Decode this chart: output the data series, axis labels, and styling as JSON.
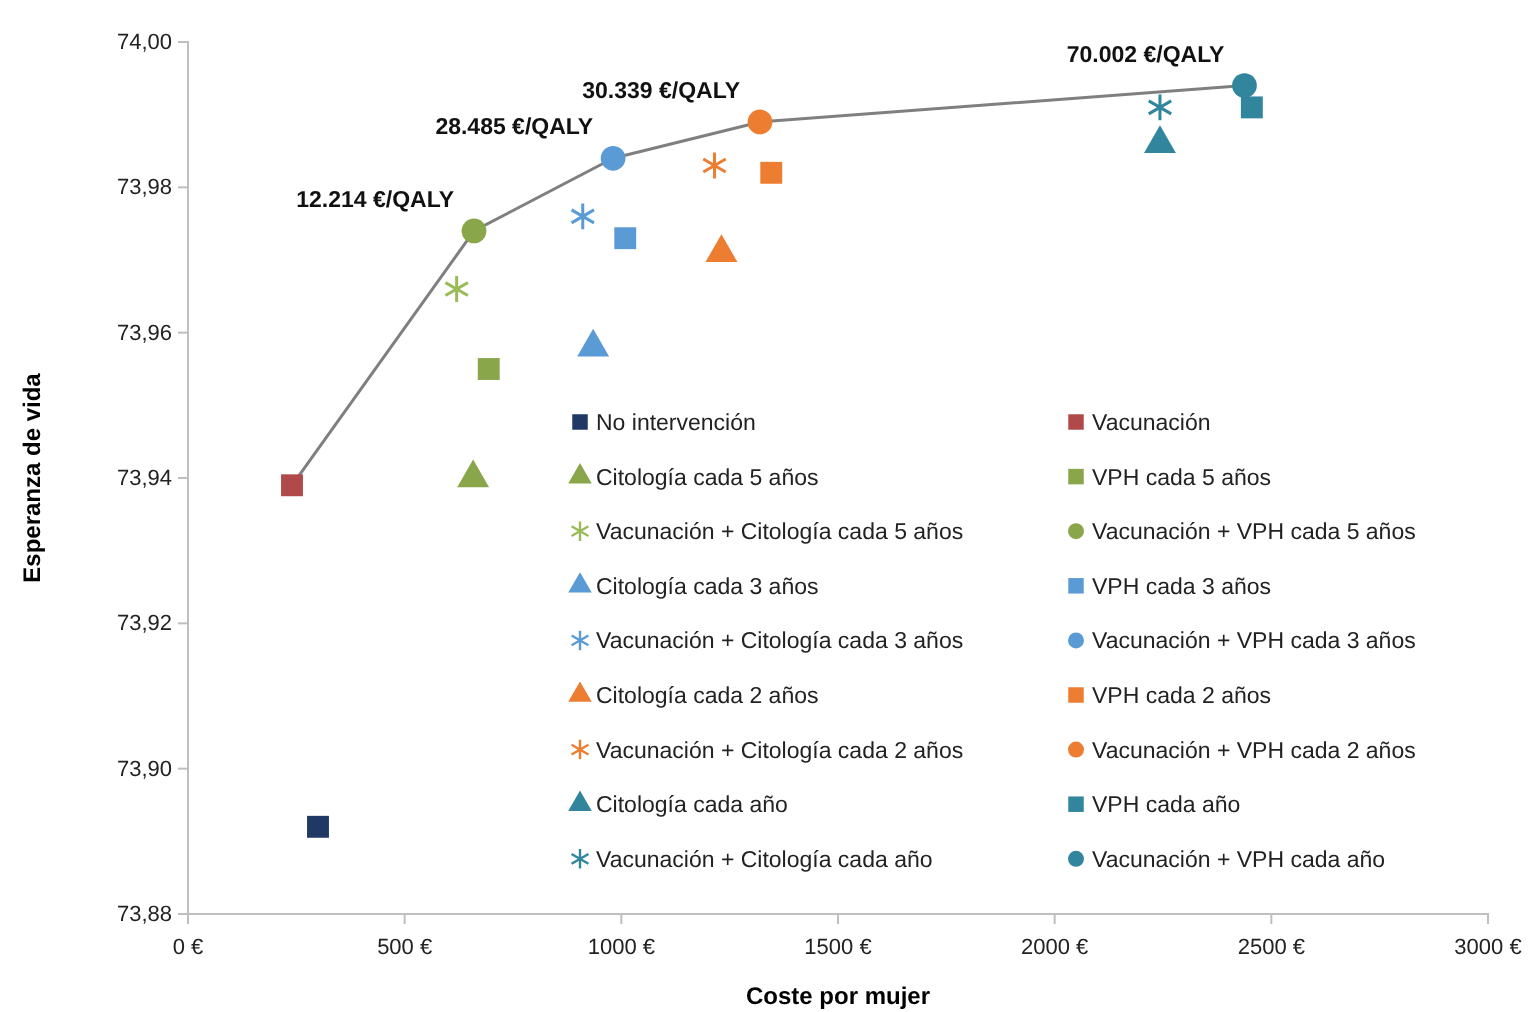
{
  "chart_data": {
    "type": "scatter",
    "xlabel": "Coste por mujer",
    "ylabel": "Esperanza de vida",
    "xlim": [
      0,
      3000
    ],
    "xticks": [
      {
        "value": 0,
        "label": "0 €"
      },
      {
        "value": 500,
        "label": "500 €"
      },
      {
        "value": 1000,
        "label": "1000 €"
      },
      {
        "value": 1500,
        "label": "1500 €"
      },
      {
        "value": 2000,
        "label": "2000 €"
      },
      {
        "value": 2500,
        "label": "2500 €"
      },
      {
        "value": 3000,
        "label": "3000 €"
      }
    ],
    "ylim": [
      73.88,
      74.0
    ],
    "yticks": [
      {
        "value": 73.88,
        "label": "73,88"
      },
      {
        "value": 73.9,
        "label": "73,90"
      },
      {
        "value": 73.92,
        "label": "73,92"
      },
      {
        "value": 73.94,
        "label": "73,94"
      },
      {
        "value": 73.96,
        "label": "73,96"
      },
      {
        "value": 73.98,
        "label": "73,98"
      },
      {
        "value": 74.0,
        "label": "74,00"
      }
    ],
    "legend": "bottom right",
    "series": [
      {
        "type": "line",
        "color": "#7f7f7f",
        "marker": "none",
        "x": [
          240,
          660,
          981,
          1320,
          2438
        ],
        "values": [
          73.939,
          73.974,
          73.984,
          73.989,
          73.994
        ]
      },
      {
        "name": "No intervención",
        "color": "#1f3864",
        "marker": "square",
        "x": [
          300
        ],
        "values": [
          73.892
        ]
      },
      {
        "name": "Vacunación",
        "color": "#b04a4a",
        "marker": "square",
        "x": [
          240
        ],
        "values": [
          73.939
        ]
      },
      {
        "name": "Citología cada 5 años",
        "color": "#8aa64a",
        "marker": "triangle",
        "x": [
          658
        ],
        "values": [
          73.94
        ]
      },
      {
        "name": "VPH cada 5 años",
        "color": "#8aa64a",
        "marker": "square",
        "x": [
          694
        ],
        "values": [
          73.955
        ]
      },
      {
        "name": "Vacunación + Citología cada 5 años",
        "color": "#9bbb59",
        "marker": "cross",
        "x": [
          620
        ],
        "values": [
          73.966
        ]
      },
      {
        "name": "Vacunación + VPH cada 5 años",
        "color": "#8aa64a",
        "marker": "circle",
        "x": [
          660
        ],
        "values": [
          73.974
        ]
      },
      {
        "name": "Citología cada 3 años",
        "color": "#5b9bd5",
        "marker": "triangle",
        "x": [
          935
        ],
        "values": [
          73.958
        ]
      },
      {
        "name": "VPH cada 3 años",
        "color": "#5b9bd5",
        "marker": "square",
        "x": [
          1009
        ],
        "values": [
          73.973
        ]
      },
      {
        "name": "Vacunación + Citología cada 3 años",
        "color": "#5b9bd5",
        "marker": "cross",
        "x": [
          911
        ],
        "values": [
          73.976
        ]
      },
      {
        "name": "Vacunación + VPH cada 3 años",
        "color": "#5b9bd5",
        "marker": "circle",
        "x": [
          981
        ],
        "values": [
          73.984
        ]
      },
      {
        "name": "Citología cada 2 años",
        "color": "#ed7d31",
        "marker": "triangle",
        "x": [
          1231
        ],
        "values": [
          73.971
        ]
      },
      {
        "name": "VPH cada 2 años",
        "color": "#ed7d31",
        "marker": "square",
        "x": [
          1346
        ],
        "values": [
          73.982
        ]
      },
      {
        "name": "Vacunación + Citología cada 2 años",
        "color": "#ed7d31",
        "marker": "cross",
        "x": [
          1215
        ],
        "values": [
          73.983
        ]
      },
      {
        "name": "Vacunación + VPH cada 2 años",
        "color": "#ed7d31",
        "marker": "circle",
        "x": [
          1320
        ],
        "values": [
          73.989
        ]
      },
      {
        "name": "Citología cada año",
        "color": "#31859c",
        "marker": "triangle",
        "x": [
          2243
        ],
        "values": [
          73.986
        ]
      },
      {
        "name": "VPH cada año",
        "color": "#31859c",
        "marker": "square",
        "x": [
          2455
        ],
        "values": [
          73.991
        ]
      },
      {
        "name": "Vacunación + Citología cada año",
        "color": "#31859c",
        "marker": "cross",
        "x": [
          2243
        ],
        "values": [
          73.991
        ]
      },
      {
        "name": "Vacunación + VPH cada año",
        "color": "#31859c",
        "marker": "circle",
        "x": [
          2438
        ],
        "values": [
          73.994
        ]
      }
    ],
    "annotations": [
      {
        "text": "12.214 €/QALY",
        "x": 660,
        "y": 73.974
      },
      {
        "text": "28.485 €/QALY",
        "x": 981,
        "y": 73.984
      },
      {
        "text": "30.339 €/QALY",
        "x": 1320,
        "y": 73.989
      },
      {
        "text": "70.002 €/QALY",
        "x": 2438,
        "y": 73.994
      }
    ]
  }
}
